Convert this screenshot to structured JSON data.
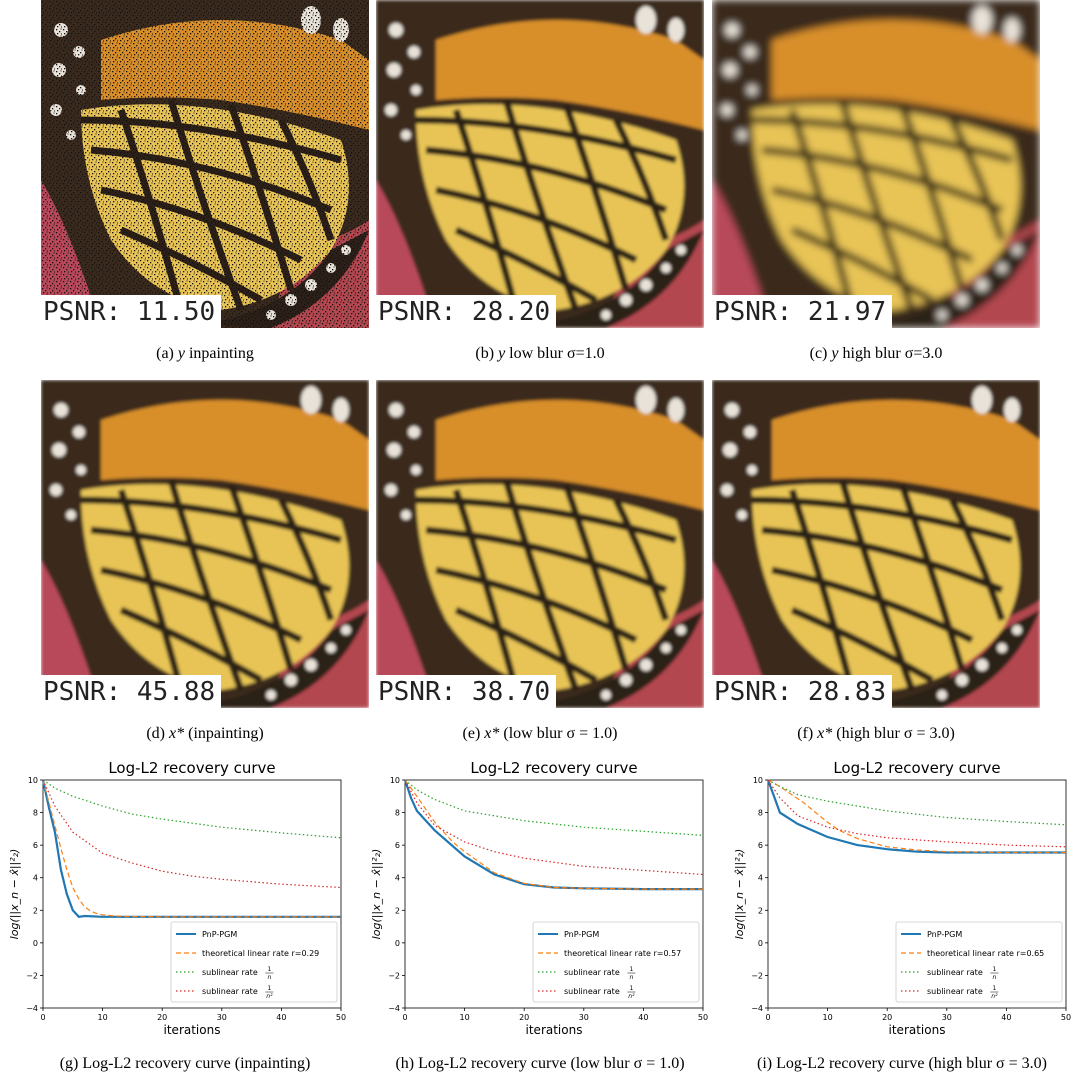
{
  "figures": [
    {
      "psnr": "PSNR: 11.50",
      "caption": {
        "prefix": "(a)",
        "var": "y",
        "rest": " inpainting"
      },
      "variant": "noisy"
    },
    {
      "psnr": "PSNR: 28.20",
      "caption": {
        "prefix": "(b)",
        "var": "y",
        "rest": " low blur σ=1.0"
      },
      "variant": "blur1"
    },
    {
      "psnr": "PSNR: 21.97",
      "caption": {
        "prefix": "(c)",
        "var": "y",
        "rest": " high blur σ=3.0"
      },
      "variant": "blur3"
    },
    {
      "psnr": "PSNR: 45.88",
      "caption": {
        "prefix": "(d)",
        "var": "x*",
        "rest": " (inpainting)"
      },
      "variant": "clean"
    },
    {
      "psnr": "PSNR: 38.70",
      "caption": {
        "prefix": "(e)",
        "var": "x*",
        "rest": " (low blur σ = 1.0)"
      },
      "variant": "clean"
    },
    {
      "psnr": "PSNR: 28.83",
      "caption": {
        "prefix": "(f)",
        "var": "x*",
        "rest": " (high blur σ = 3.0)"
      },
      "variant": "clean"
    }
  ],
  "charts_captions": [
    "(g) Log-L2 recovery curve (inpainting)",
    "(h) Log-L2 recovery curve (low blur σ = 1.0)",
    "(i) Log-L2 recovery curve (high blur σ = 3.0)"
  ],
  "colors": {
    "pnp": "#1f77b4",
    "linear": "#ff7f0e",
    "sub1": "#2ca02c",
    "sub2": "#d62728"
  },
  "chart_data": [
    {
      "type": "line",
      "title": "Log-L2 recovery curve",
      "xlabel": "iterations",
      "ylabel": "log(||x_n − x̂||²₂)",
      "xlim": [
        0,
        50
      ],
      "ylim": [
        -4,
        10
      ],
      "xticks": [
        "0",
        "10",
        "20",
        "30",
        "40",
        "50"
      ],
      "yticks": [
        "−4",
        "−2",
        "0",
        "2",
        "4",
        "6",
        "8",
        "10"
      ],
      "legend_position": "lower-right",
      "series": [
        {
          "name": "PnP-PGM",
          "style": "solid",
          "x": [
            0,
            1,
            2,
            3,
            4,
            5,
            6,
            7,
            10,
            20,
            30,
            40,
            50
          ],
          "y": [
            10,
            8.3,
            6.8,
            4.5,
            3.0,
            2.0,
            1.6,
            1.65,
            1.6,
            1.6,
            1.6,
            1.6,
            1.6
          ]
        },
        {
          "name": "theoretical linear rate r=0.29",
          "style": "dashed",
          "x": [
            0,
            1,
            2,
            3,
            4,
            5,
            6,
            7,
            8,
            9,
            10,
            12,
            15,
            20,
            30,
            40,
            50
          ],
          "y": [
            10,
            8.6,
            7.2,
            5.8,
            4.5,
            3.4,
            2.7,
            2.2,
            1.95,
            1.8,
            1.72,
            1.65,
            1.62,
            1.6,
            1.6,
            1.6,
            1.6
          ]
        },
        {
          "name": "sublinear rate",
          "frac": "1/n",
          "style": "dotted",
          "x": [
            0,
            2,
            5,
            10,
            15,
            20,
            30,
            40,
            50
          ],
          "y": [
            10,
            9.5,
            9.0,
            8.4,
            7.9,
            7.6,
            7.1,
            6.75,
            6.45
          ]
        },
        {
          "name": "sublinear rate",
          "frac": "1/n²",
          "style": "dotted",
          "x": [
            0,
            2,
            5,
            10,
            15,
            20,
            25,
            30,
            40,
            50
          ],
          "y": [
            10,
            8.4,
            6.8,
            5.5,
            4.9,
            4.4,
            4.1,
            3.9,
            3.6,
            3.4
          ]
        }
      ]
    },
    {
      "type": "line",
      "title": "Log-L2 recovery curve",
      "xlabel": "iterations",
      "ylabel": "log(||x_n − x̂||²₂)",
      "xlim": [
        0,
        50
      ],
      "ylim": [
        -4,
        10
      ],
      "xticks": [
        "0",
        "10",
        "20",
        "30",
        "40",
        "50"
      ],
      "yticks": [
        "−4",
        "−2",
        "0",
        "2",
        "4",
        "6",
        "8",
        "10"
      ],
      "legend_position": "lower-right",
      "series": [
        {
          "name": "PnP-PGM",
          "style": "solid",
          "x": [
            0,
            1,
            2,
            5,
            10,
            15,
            20,
            25,
            30,
            40,
            50
          ],
          "y": [
            10,
            8.9,
            8.1,
            6.9,
            5.3,
            4.2,
            3.6,
            3.4,
            3.35,
            3.3,
            3.3
          ]
        },
        {
          "name": "theoretical linear rate r=0.57",
          "style": "dashed",
          "x": [
            0,
            2,
            5,
            8,
            10,
            15,
            20,
            25,
            30,
            40,
            50
          ],
          "y": [
            10,
            9.0,
            7.4,
            6.2,
            5.6,
            4.3,
            3.65,
            3.4,
            3.35,
            3.3,
            3.3
          ]
        },
        {
          "name": "sublinear rate",
          "frac": "1/n",
          "style": "dotted",
          "x": [
            0,
            2,
            5,
            10,
            20,
            30,
            40,
            50
          ],
          "y": [
            10,
            9.4,
            8.8,
            8.1,
            7.5,
            7.1,
            6.85,
            6.6
          ]
        },
        {
          "name": "sublinear rate",
          "frac": "1/n²",
          "style": "dotted",
          "x": [
            0,
            2,
            5,
            10,
            15,
            20,
            30,
            40,
            50
          ],
          "y": [
            10,
            8.6,
            7.2,
            6.2,
            5.6,
            5.2,
            4.7,
            4.45,
            4.2
          ]
        }
      ]
    },
    {
      "type": "line",
      "title": "Log-L2 recovery curve",
      "xlabel": "iterations",
      "ylabel": "log(||x_n − x̂||²₂)",
      "xlim": [
        0,
        50
      ],
      "ylim": [
        -4,
        10
      ],
      "xticks": [
        "0",
        "10",
        "20",
        "30",
        "40",
        "50"
      ],
      "yticks": [
        "−4",
        "−2",
        "0",
        "2",
        "4",
        "6",
        "8",
        "10"
      ],
      "legend_position": "lower-right",
      "series": [
        {
          "name": "PnP-PGM",
          "style": "solid",
          "x": [
            0,
            1,
            2,
            5,
            10,
            15,
            20,
            25,
            30,
            40,
            50
          ],
          "y": [
            10,
            9.0,
            8.0,
            7.3,
            6.5,
            6.0,
            5.75,
            5.6,
            5.55,
            5.55,
            5.55
          ]
        },
        {
          "name": "theoretical linear rate r=0.65",
          "style": "dashed",
          "x": [
            0,
            2,
            4,
            6,
            8,
            10,
            12,
            15,
            20,
            25,
            30,
            40,
            50
          ],
          "y": [
            10,
            9.6,
            9.1,
            8.6,
            8.0,
            7.4,
            6.9,
            6.4,
            5.9,
            5.7,
            5.6,
            5.55,
            5.55
          ]
        },
        {
          "name": "sublinear rate",
          "frac": "1/n",
          "style": "dotted",
          "x": [
            0,
            2,
            5,
            10,
            20,
            30,
            40,
            50
          ],
          "y": [
            10,
            9.6,
            9.1,
            8.7,
            8.1,
            7.7,
            7.45,
            7.25
          ]
        },
        {
          "name": "sublinear rate",
          "frac": "1/n²",
          "style": "dotted",
          "x": [
            0,
            2,
            5,
            10,
            15,
            20,
            30,
            40,
            50
          ],
          "y": [
            10,
            8.9,
            7.8,
            7.1,
            6.7,
            6.45,
            6.2,
            6.0,
            5.9
          ]
        }
      ]
    }
  ]
}
